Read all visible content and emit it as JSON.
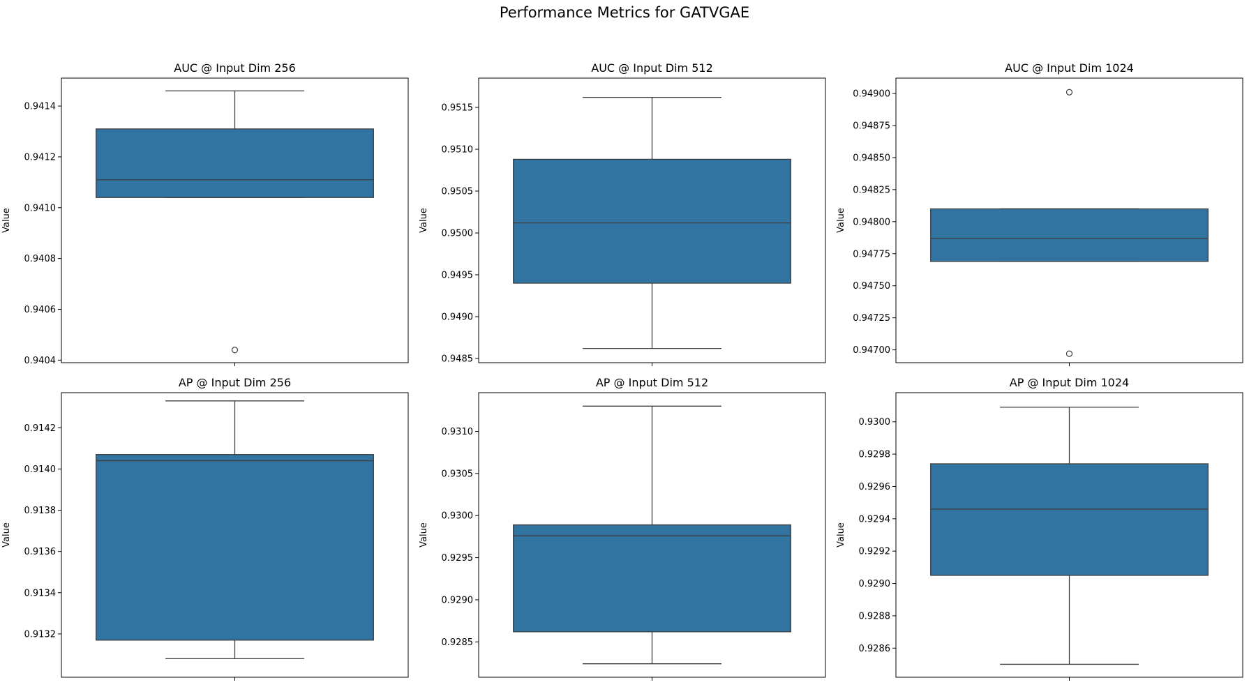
{
  "figure": {
    "title": "Performance Metrics for GATVGAE"
  },
  "colors": {
    "box_fill": "#3274a1",
    "line": "#3d3d3d",
    "axis": "#000000",
    "background": "#ffffff"
  },
  "chart_data": [
    {
      "type": "box",
      "title": "AUC @ Input Dim 256",
      "ylabel": "Value",
      "ylim": [
        0.94039,
        0.94151
      ],
      "yticks": [
        0.9404,
        0.9406,
        0.9408,
        0.941,
        0.9412,
        0.9414
      ],
      "ytick_labels": [
        "0.9404",
        "0.9406",
        "0.9408",
        "0.9410",
        "0.9412",
        "0.9414"
      ],
      "whisker_low": 0.94104,
      "q1": 0.94104,
      "median": 0.94111,
      "q3": 0.94131,
      "whisker_high": 0.94146,
      "outliers": [
        0.94044
      ]
    },
    {
      "type": "box",
      "title": "AUC @ Input Dim 512",
      "ylabel": "Value",
      "ylim": [
        0.94845,
        0.95185
      ],
      "yticks": [
        0.9485,
        0.949,
        0.9495,
        0.95,
        0.9505,
        0.951,
        0.9515
      ],
      "ytick_labels": [
        "0.9485",
        "0.9490",
        "0.9495",
        "0.9500",
        "0.9505",
        "0.9510",
        "0.9515"
      ],
      "whisker_low": 0.94862,
      "q1": 0.9494,
      "median": 0.95012,
      "q3": 0.95088,
      "whisker_high": 0.95162,
      "outliers": []
    },
    {
      "type": "box",
      "title": "AUC @ Input Dim 1024",
      "ylabel": "Value",
      "ylim": [
        0.9469,
        0.94912
      ],
      "yticks": [
        0.947,
        0.94725,
        0.9475,
        0.94775,
        0.948,
        0.94825,
        0.9485,
        0.94875,
        0.949
      ],
      "ytick_labels": [
        "0.94700",
        "0.94725",
        "0.94750",
        "0.94775",
        "0.94800",
        "0.94825",
        "0.94850",
        "0.94875",
        "0.94900"
      ],
      "whisker_low": 0.94769,
      "q1": 0.94769,
      "median": 0.94787,
      "q3": 0.9481,
      "whisker_high": 0.9481,
      "outliers": [
        0.94697,
        0.94901
      ]
    },
    {
      "type": "box",
      "title": "AP @ Input Dim 256",
      "ylabel": "Value",
      "ylim": [
        0.91299,
        0.91437
      ],
      "yticks": [
        0.9132,
        0.9134,
        0.9136,
        0.9138,
        0.914,
        0.9142
      ],
      "ytick_labels": [
        "0.9132",
        "0.9134",
        "0.9136",
        "0.9138",
        "0.9140",
        "0.9142"
      ],
      "whisker_low": 0.91308,
      "q1": 0.91317,
      "median": 0.91404,
      "q3": 0.91407,
      "whisker_high": 0.91433,
      "outliers": []
    },
    {
      "type": "box",
      "title": "AP @ Input Dim 512",
      "ylabel": "Value",
      "ylim": [
        0.92808,
        0.93146
      ],
      "yticks": [
        0.9285,
        0.929,
        0.9295,
        0.93,
        0.9305,
        0.931
      ],
      "ytick_labels": [
        "0.9285",
        "0.9290",
        "0.9295",
        "0.9300",
        "0.9305",
        "0.9310"
      ],
      "whisker_low": 0.92824,
      "q1": 0.92862,
      "median": 0.92976,
      "q3": 0.92989,
      "whisker_high": 0.9313,
      "outliers": []
    },
    {
      "type": "box",
      "title": "AP @ Input Dim 1024",
      "ylabel": "Value",
      "ylim": [
        0.92842,
        0.93018
      ],
      "yticks": [
        0.9286,
        0.9288,
        0.929,
        0.9292,
        0.9294,
        0.9296,
        0.9298,
        0.93
      ],
      "ytick_labels": [
        "0.9286",
        "0.9288",
        "0.9290",
        "0.9292",
        "0.9294",
        "0.9296",
        "0.9298",
        "0.9300"
      ],
      "whisker_low": 0.9285,
      "q1": 0.92905,
      "median": 0.92946,
      "q3": 0.92974,
      "whisker_high": 0.93009,
      "outliers": []
    }
  ]
}
